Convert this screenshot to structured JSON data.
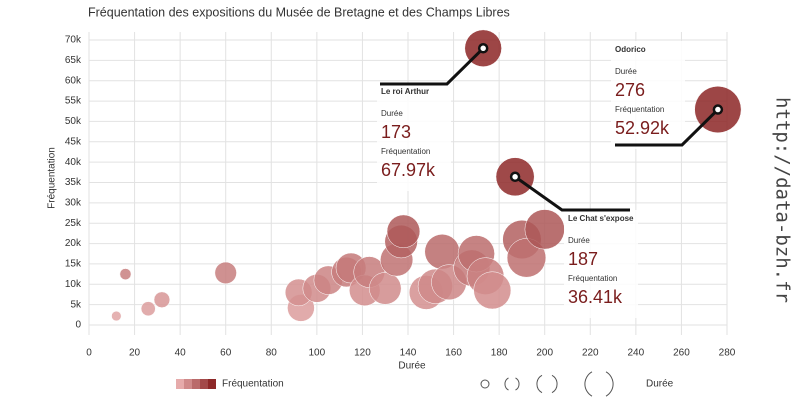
{
  "chart_data": {
    "type": "bubble",
    "title": "Fréquentation des expositions du Musée de Bretagne et des Champs Libres",
    "xlabel": "Durée",
    "ylabel": "Fréquentation",
    "xlim": [
      0,
      280
    ],
    "xticks": [
      0,
      20,
      40,
      60,
      80,
      100,
      120,
      140,
      160,
      180,
      200,
      220,
      240,
      260,
      280
    ],
    "ylim": [
      0,
      70000
    ],
    "yticks": [
      {
        "value": 0,
        "label": "0"
      },
      {
        "value": 5000,
        "label": "5k"
      },
      {
        "value": 10000,
        "label": "10k"
      },
      {
        "value": 15000,
        "label": "15k"
      },
      {
        "value": 20000,
        "label": "20k"
      },
      {
        "value": 25000,
        "label": "25k"
      },
      {
        "value": 30000,
        "label": "30k"
      },
      {
        "value": 35000,
        "label": "35k"
      },
      {
        "value": 40000,
        "label": "40k"
      },
      {
        "value": 45000,
        "label": "45k"
      },
      {
        "value": 50000,
        "label": "50k"
      },
      {
        "value": 55000,
        "label": "55k"
      },
      {
        "value": 60000,
        "label": "60k"
      },
      {
        "value": 65000,
        "label": "65k"
      },
      {
        "value": 70000,
        "label": "70k"
      }
    ],
    "grid": true,
    "colors": [
      "#f6c3c3",
      "#8c2626"
    ],
    "x": [
      12,
      16,
      26,
      32,
      60,
      93,
      92,
      100,
      105,
      113,
      115,
      121,
      123,
      130,
      135,
      137,
      138,
      148,
      152,
      155,
      158,
      168,
      170,
      174,
      177,
      190,
      192,
      200,
      173,
      187,
      276
    ],
    "values": [
      2200,
      12500,
      4000,
      6200,
      12800,
      4200,
      8000,
      9000,
      11000,
      13000,
      14000,
      8500,
      13000,
      9000,
      16000,
      20500,
      23000,
      8000,
      9500,
      18000,
      10500,
      14000,
      17500,
      12000,
      8500,
      21000,
      16500,
      23500,
      67970,
      36410,
      52920
    ],
    "labels": [
      null,
      null,
      null,
      null,
      null,
      null,
      null,
      null,
      null,
      null,
      null,
      null,
      null,
      null,
      null,
      null,
      null,
      null,
      null,
      null,
      null,
      null,
      null,
      null,
      null,
      null,
      null,
      null,
      "Le roi Arthur",
      "Le Chat s'expose",
      "Odorico"
    ],
    "value_labels": [
      null,
      null,
      null,
      null,
      null,
      null,
      null,
      null,
      null,
      null,
      null,
      null,
      null,
      null,
      null,
      null,
      null,
      null,
      null,
      null,
      null,
      null,
      null,
      null,
      null,
      null,
      null,
      null,
      "67.97k",
      "36.41k",
      "52.92k"
    ],
    "watermark": "http://data-bzh.fr"
  }
}
